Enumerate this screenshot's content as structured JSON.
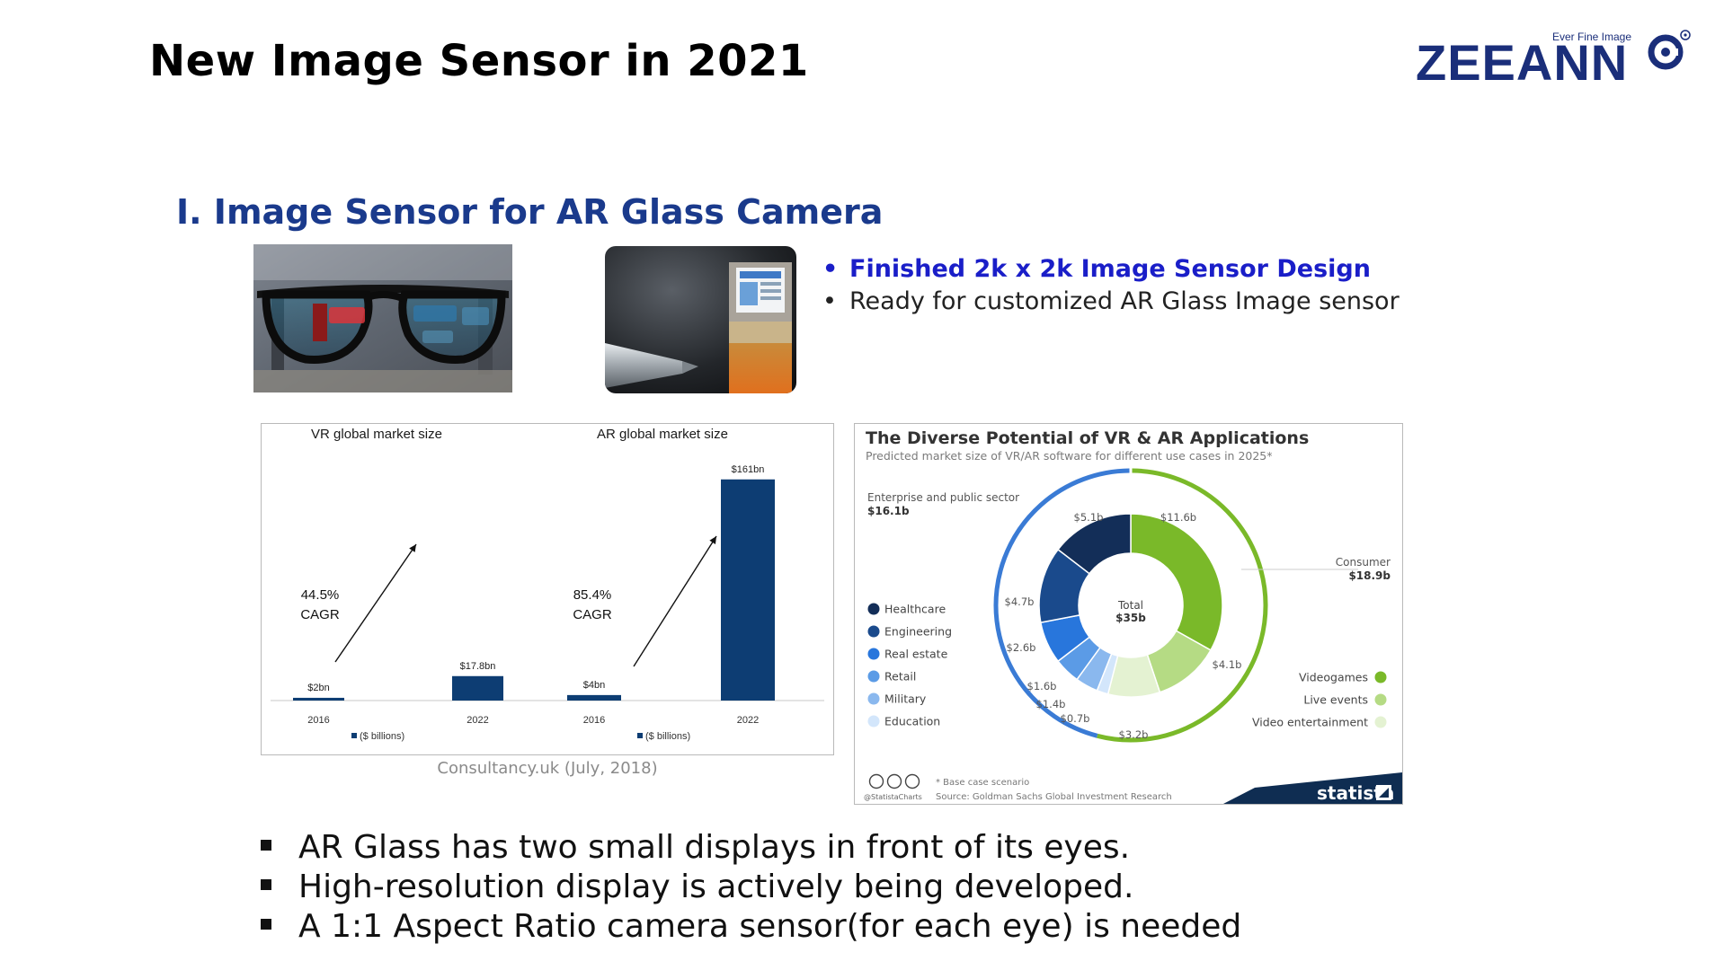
{
  "slide": {
    "title": "New Image Sensor in 2021",
    "section_title": "I. Image Sensor for AR Glass Camera"
  },
  "logo": {
    "tagline": "Ever Fine Image",
    "wordmark": "ZEEANN",
    "brand_color": "#1a2e7a"
  },
  "bullets": [
    "Finished 2k x 2k Image Sensor Design",
    "Ready for customized AR Glass Image sensor"
  ],
  "credit": "Consultancy.uk (July, 2018)",
  "list": [
    "AR Glass has two small displays in front of its eyes.",
    "High-resolution display is actively being developed.",
    "A 1:1 Aspect Ratio camera sensor(for each eye) is needed"
  ],
  "colors": {
    "accent_blue": "#1a3a8c",
    "bullet_blue": "#1a1ec8",
    "bar_navy": "#0d3d73"
  },
  "chart_data": [
    {
      "type": "bar",
      "title": "VR global market size",
      "categories": [
        "2016",
        "2022"
      ],
      "values": [
        2,
        17.8
      ],
      "value_labels": [
        "$2bn",
        "$17.8bn"
      ],
      "annotation": [
        "44.5%",
        "CAGR"
      ],
      "legend": "($ billions)",
      "ylim": [
        0,
        170
      ]
    },
    {
      "type": "bar",
      "title": "AR global market size",
      "categories": [
        "2016",
        "2022"
      ],
      "values": [
        4,
        161
      ],
      "value_labels": [
        "$4bn",
        "$161bn"
      ],
      "annotation": [
        "85.4%",
        "CAGR"
      ],
      "legend": "($ billions)",
      "ylim": [
        0,
        170
      ]
    },
    {
      "type": "pie",
      "title": "The Diverse Potential of VR & AR Applications",
      "subtitle": "Predicted market size of VR/AR software for different use cases in 2025*",
      "center_label": [
        "Total",
        "$35b"
      ],
      "outer": [
        {
          "name": "Enterprise and public sector",
          "value": 16.1,
          "value_label": "$16.1b",
          "color": "#3a7bd5"
        },
        {
          "name": "Consumer",
          "value": 18.9,
          "value_label": "$18.9b",
          "color": "#7ab929"
        }
      ],
      "inner": [
        {
          "name": "Videogames",
          "value": 11.6,
          "label": "$11.6b",
          "color": "#7ab929"
        },
        {
          "name": "Live events",
          "value": 4.1,
          "label": "$4.1b",
          "color": "#b5db84"
        },
        {
          "name": "Video entertainment",
          "value": 3.2,
          "label": "$3.2b",
          "color": "#e4f2d2"
        },
        {
          "name": "Education",
          "value": 0.7,
          "label": "$0.7b",
          "color": "#d3e6fb"
        },
        {
          "name": "Military",
          "value": 1.4,
          "label": "$1.4b",
          "color": "#8ab8ee"
        },
        {
          "name": "Retail",
          "value": 1.6,
          "label": "$1.6b",
          "color": "#5b9be6"
        },
        {
          "name": "Real estate",
          "value": 2.6,
          "label": "$2.6b",
          "color": "#2876dc"
        },
        {
          "name": "Engineering",
          "value": 4.7,
          "label": "$4.7b",
          "color": "#1a4a8c"
        },
        {
          "name": "Healthcare",
          "value": 5.1,
          "label": "$5.1b",
          "color": "#132e58"
        }
      ],
      "left_legend": [
        "Healthcare",
        "Engineering",
        "Real estate",
        "Retail",
        "Military",
        "Education"
      ],
      "right_legend": [
        "Videogames",
        "Live events",
        "Video entertainment"
      ],
      "footnote": "* Base case scenario",
      "source": "Source: Goldman Sachs Global Investment Research",
      "handle": "@StatistaCharts",
      "brand": "statista"
    }
  ]
}
